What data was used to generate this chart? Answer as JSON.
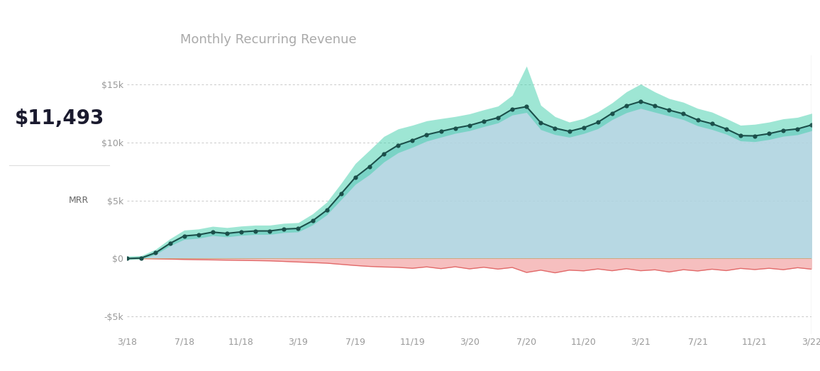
{
  "title": "Monthly Recurring Revenue",
  "value_label": "$11,493",
  "legend_label": "MRR",
  "bg_color": "#ffffff",
  "chart_bg": "#ffffff",
  "box_bg": "#f2f2f5",
  "teal_line_color": "#1b4f4a",
  "teal_fill_color": "#3ecfaa",
  "blue_fill": "#b0d4e0",
  "red_line_color": "#e06060",
  "red_fill": "#f5b8b8",
  "grid_color": "#c8c8c8",
  "ytick_labels": [
    "$15k",
    "$10k",
    "$5k",
    "$0",
    "-$5k"
  ],
  "ytick_values": [
    15000,
    10000,
    5000,
    0,
    -5000
  ],
  "xtick_labels": [
    "3/18",
    "7/18",
    "11/18",
    "3/19",
    "7/19",
    "11/19",
    "3/20",
    "7/20",
    "11/20",
    "3/21",
    "7/21",
    "11/21",
    "3/22"
  ],
  "xtick_pos": [
    0,
    4,
    8,
    12,
    16,
    20,
    24,
    28,
    32,
    36,
    40,
    44,
    48
  ],
  "ylim": [
    -6500,
    17500
  ],
  "xlim": [
    0,
    48
  ]
}
